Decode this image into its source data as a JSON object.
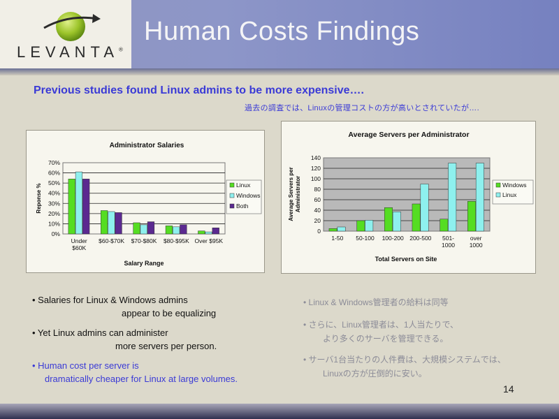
{
  "header": {
    "logo_text": "LEVANTA",
    "logo_reg": "®",
    "title": "Human Costs Findings"
  },
  "subhead": {
    "en": "Previous studies found Linux admins to be more expensive….",
    "jp": "過去の調査では、Linuxの管理コストの方が高いとされていたが…."
  },
  "colors": {
    "green": "#55dd22",
    "cyan": "#8ef0ee",
    "purple": "#5b2a90",
    "title_blue": "#3a3ad6"
  },
  "chart_data": [
    {
      "type": "bar",
      "title": "Administrator Salaries",
      "xlabel": "Salary Range",
      "ylabel": "Reponse %",
      "categories": [
        [
          "Under",
          "$60K"
        ],
        [
          "$60-$70K"
        ],
        [
          "$70-$80K"
        ],
        [
          "$80-$95K"
        ],
        [
          "Over $95K"
        ]
      ],
      "series": [
        {
          "name": "Linux",
          "color": "#55dd22",
          "values": [
            54,
            23,
            11,
            8,
            3
          ]
        },
        {
          "name": "Windows",
          "color": "#8ef0ee",
          "values": [
            61,
            22,
            9,
            7,
            2
          ]
        },
        {
          "name": "Both",
          "color": "#5b2a90",
          "values": [
            54,
            21,
            12,
            9,
            6
          ]
        }
      ],
      "ylim": [
        0,
        70
      ],
      "yticks": [
        "0%",
        "10%",
        "20%",
        "30%",
        "40%",
        "50%",
        "60%",
        "70%"
      ],
      "grid": true,
      "legend": "right"
    },
    {
      "type": "bar",
      "title": "Average Servers per Administrator",
      "xlabel": "Total Servers on Site",
      "ylabel": "Average Servers per Administrator",
      "categories": [
        [
          "1-50"
        ],
        [
          "50-100"
        ],
        [
          "100-200"
        ],
        [
          "200-500"
        ],
        [
          "501-",
          "1000"
        ],
        [
          "over",
          "1000"
        ]
      ],
      "series": [
        {
          "name": "Windows",
          "color": "#55dd22",
          "values": [
            5,
            20,
            45,
            52,
            23,
            57
          ]
        },
        {
          "name": "Linux",
          "color": "#8ef0ee",
          "values": [
            8,
            21,
            37,
            90,
            130,
            130
          ]
        }
      ],
      "ylim": [
        0,
        140
      ],
      "yticks": [
        "0",
        "20",
        "40",
        "60",
        "80",
        "100",
        "120",
        "140"
      ],
      "grid": true,
      "legend": "right"
    }
  ],
  "bullets_en": [
    {
      "line1": "• Salaries for Linux & Windows admins",
      "line2": "appear to be equalizing",
      "color": "#111111"
    },
    {
      "line1": "• Yet Linux admins can administer",
      "line2": "more servers per person.",
      "color": "#111111"
    },
    {
      "line1": "• Human cost per server is",
      "line2": "dramatically cheaper for Linux at large volumes.",
      "color": "#3a3ad6"
    }
  ],
  "bullets_jp": [
    {
      "line1": "• Linux & Windows管理者の給料は同等",
      "line2": ""
    },
    {
      "line1": "• さらに、Linux管理者は、1人当たりで、",
      "line2": "より多くのサーバを管理できる。"
    },
    {
      "line1": "• サーバ1台当たりの人件費は、大規模システムでは、",
      "line2": "Linuxの方が圧倒的に安い。"
    }
  ],
  "page_number": "14"
}
